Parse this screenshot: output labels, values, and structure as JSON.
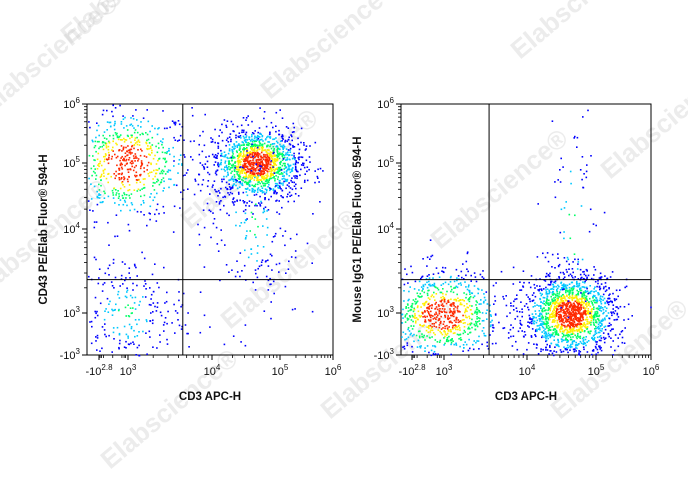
{
  "watermark_text": "Elabscience",
  "watermark_registered": "®",
  "colors": {
    "density_low": "#0000ff",
    "density_mid_low": "#00c8ff",
    "density_mid": "#00ff66",
    "density_high": "#ffee00",
    "density_max": "#ff2a00",
    "gate_lines": "#000000"
  },
  "chart_data": [
    {
      "type": "scatter",
      "subtype": "flow-cytometry-density-dot-plot",
      "xlabel": "CD3 APC-H",
      "ylabel": "CD43 PE/Elab Fluor® 594-H",
      "x_scale": "biexponential",
      "y_scale": "biexponential",
      "xlim": [
        -631,
        1000000
      ],
      "ylim": [
        -1000,
        1000000
      ],
      "x_ticks": [
        {
          "value": -631,
          "base": "-10",
          "exp": "2.8"
        },
        {
          "value": 1000,
          "base": "10",
          "exp": "3"
        },
        {
          "value": 10000,
          "base": "10",
          "exp": "4"
        },
        {
          "value": 100000,
          "base": "10",
          "exp": "5"
        },
        {
          "value": 1000000,
          "base": "10",
          "exp": "6"
        }
      ],
      "y_ticks": [
        {
          "value": -1000,
          "base": "-10",
          "exp": "3"
        },
        {
          "value": 1000,
          "base": "10",
          "exp": "3"
        },
        {
          "value": 10000,
          "base": "10",
          "exp": "4"
        },
        {
          "value": 100000,
          "base": "10",
          "exp": "5"
        },
        {
          "value": 1000000,
          "base": "10",
          "exp": "6"
        }
      ],
      "quadrant_gate": {
        "x": 4500,
        "y": 2500
      },
      "populations": [
        {
          "label": "CD3- CD43+",
          "center": [
            650,
            100000
          ],
          "spread": [
            0.13,
            0.11
          ],
          "weight": 0.25
        },
        {
          "label": "CD3+ CD43+ (main)",
          "center": [
            45000,
            100000
          ],
          "spread": [
            0.09,
            0.07
          ],
          "weight": 0.5
        },
        {
          "label": "CD3- CD43-",
          "center": [
            550,
            900
          ],
          "spread": [
            0.12,
            0.12
          ],
          "weight": 0.1
        },
        {
          "label": "tail",
          "center": [
            40000,
            15000
          ],
          "spread": [
            0.1,
            0.22
          ],
          "weight": 0.08
        }
      ],
      "grid": false,
      "legend": "none"
    },
    {
      "type": "scatter",
      "subtype": "flow-cytometry-density-dot-plot",
      "xlabel": "CD3 APC-H",
      "ylabel": "Mouse IgG1 PE/Elab Fluor® 594-H",
      "x_scale": "biexponential",
      "y_scale": "biexponential",
      "xlim": [
        -631,
        1000000
      ],
      "ylim": [
        -1000,
        1000000
      ],
      "x_ticks": [
        {
          "value": -631,
          "base": "-10",
          "exp": "2.8"
        },
        {
          "value": 1000,
          "base": "10",
          "exp": "3"
        },
        {
          "value": 10000,
          "base": "10",
          "exp": "4"
        },
        {
          "value": 100000,
          "base": "10",
          "exp": "5"
        },
        {
          "value": 1000000,
          "base": "10",
          "exp": "6"
        }
      ],
      "y_ticks": [
        {
          "value": -1000,
          "base": "-10",
          "exp": "3"
        },
        {
          "value": 1000,
          "base": "10",
          "exp": "3"
        },
        {
          "value": 10000,
          "base": "10",
          "exp": "4"
        },
        {
          "value": 100000,
          "base": "10",
          "exp": "5"
        },
        {
          "value": 1000000,
          "base": "10",
          "exp": "6"
        }
      ],
      "quadrant_gate": {
        "x": 3500,
        "y": 2500
      },
      "populations": [
        {
          "label": "CD3- isotype",
          "center": [
            600,
            800
          ],
          "spread": [
            0.12,
            0.09
          ],
          "weight": 0.32
        },
        {
          "label": "CD3+ isotype (main)",
          "center": [
            42000,
            900
          ],
          "spread": [
            0.09,
            0.08
          ],
          "weight": 0.6
        },
        {
          "label": "sparse",
          "center": [
            45000,
            10000
          ],
          "spread": [
            0.06,
            0.35
          ],
          "weight": 0.03
        }
      ],
      "grid": false,
      "legend": "none"
    }
  ]
}
